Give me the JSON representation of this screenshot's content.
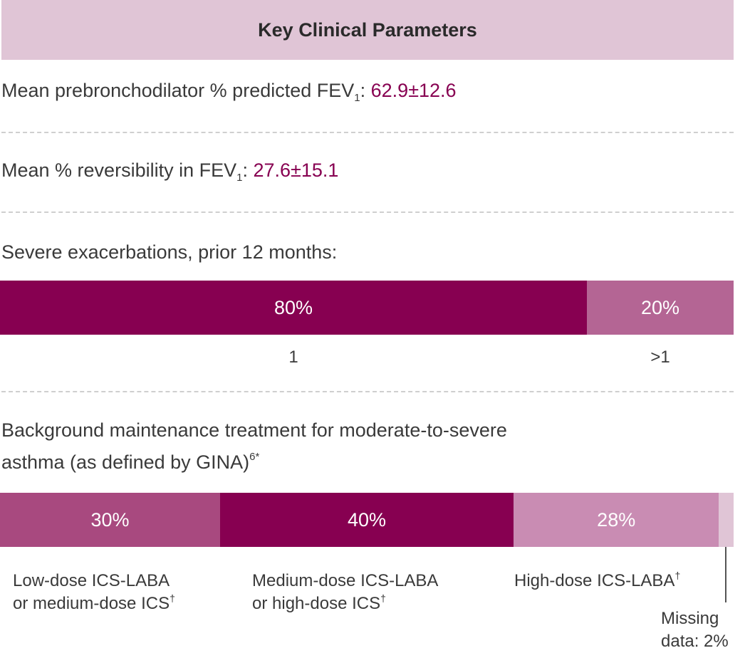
{
  "header": {
    "title": "Key Clinical Parameters"
  },
  "stats": {
    "fev1": {
      "label_pre": "Mean prebronchodilator % predicted FEV",
      "subscript": "1",
      "label_post": ": ",
      "value": "62.9±12.6"
    },
    "reversibility": {
      "label_pre": "Mean % reversibility in FEV",
      "subscript": "1",
      "label_post": ": ",
      "value": "27.6±15.1"
    }
  },
  "exacerbations": {
    "title": "Severe exacerbations, prior 12 months:"
  },
  "treatment": {
    "title_line1": "Background maintenance treatment for moderate-to-severe",
    "title_line2": "asthma (as defined by GINA)",
    "title_sup": "6*"
  },
  "chart_data": [
    {
      "type": "bar",
      "orientation": "horizontal-stacked",
      "title": "Severe exacerbations, prior 12 months:",
      "categories": [
        "1",
        ">1"
      ],
      "values": [
        80,
        20
      ],
      "value_labels": [
        "80%",
        "20%"
      ],
      "colors": [
        "#870051",
        "#b46594"
      ]
    },
    {
      "type": "bar",
      "orientation": "horizontal-stacked",
      "title": "Background maintenance treatment for moderate-to-severe asthma (as defined by GINA)6*",
      "categories": [
        {
          "line1": "Low-dose ICS-LABA",
          "line2": "or medium-dose ICS",
          "sup": "†"
        },
        {
          "line1": "Medium-dose ICS-LABA",
          "line2": "or high-dose ICS",
          "sup": "†"
        },
        {
          "line1": "High-dose ICS-LABA",
          "line2": "",
          "sup": "†"
        },
        {
          "line1": "Missing",
          "line2": "data: 2%",
          "sup": ""
        }
      ],
      "values": [
        30,
        40,
        28,
        2
      ],
      "value_labels": [
        "30%",
        "40%",
        "28%",
        ""
      ],
      "colors": [
        "#a8497f",
        "#870051",
        "#c98cb3",
        "#e0c5d6"
      ]
    }
  ]
}
